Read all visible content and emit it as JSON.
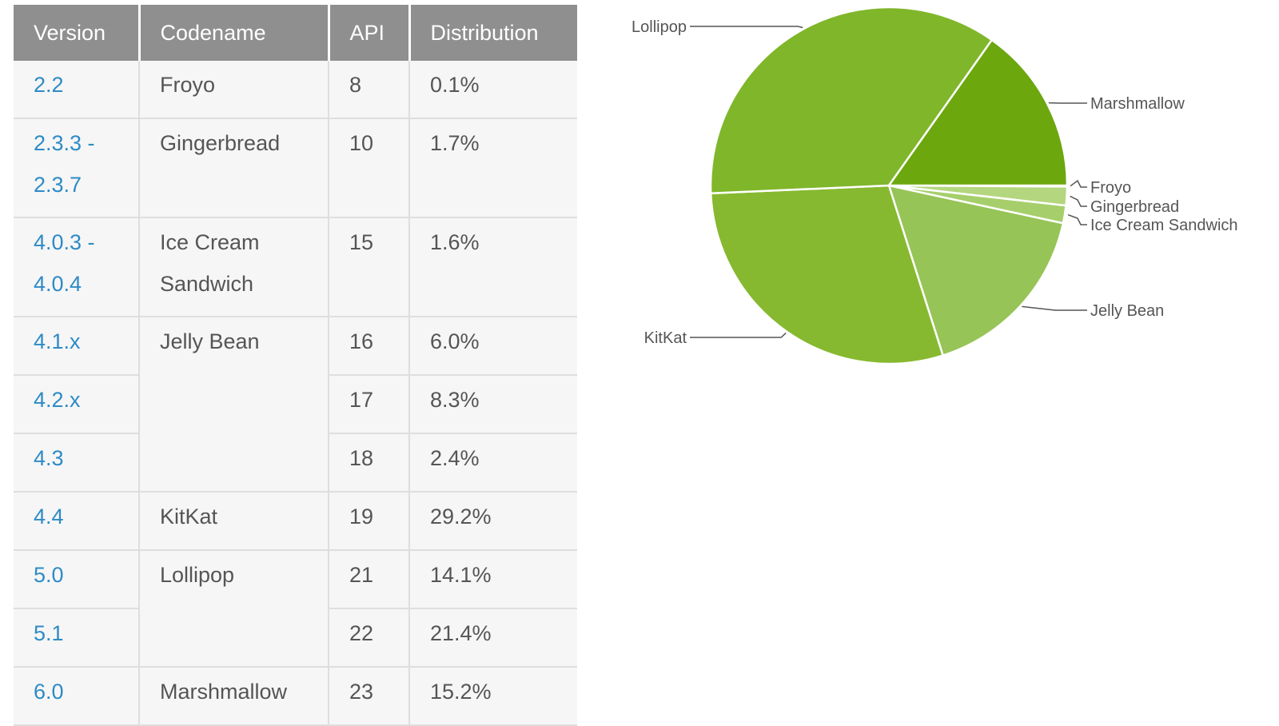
{
  "table": {
    "headers": [
      "Version",
      "Codename",
      "API",
      "Distribution"
    ],
    "rows": [
      {
        "version": "2.2",
        "codename": "Froyo",
        "api": "8",
        "distribution": "0.1%"
      },
      {
        "version": "2.3.3 -\n2.3.7",
        "codename": "Gingerbread",
        "api": "10",
        "distribution": "1.7%"
      },
      {
        "version": "4.0.3 -\n4.0.4",
        "codename": "Ice Cream\nSandwich",
        "api": "15",
        "distribution": "1.6%"
      },
      {
        "version": "4.1.x",
        "codename": "Jelly Bean",
        "api": "16",
        "distribution": "6.0%"
      },
      {
        "version": "4.2.x",
        "codename": "",
        "api": "17",
        "distribution": "8.3%"
      },
      {
        "version": "4.3",
        "codename": "",
        "api": "18",
        "distribution": "2.4%"
      },
      {
        "version": "4.4",
        "codename": "KitKat",
        "api": "19",
        "distribution": "29.2%"
      },
      {
        "version": "5.0",
        "codename": "Lollipop",
        "api": "21",
        "distribution": "14.1%"
      },
      {
        "version": "5.1",
        "codename": "",
        "api": "22",
        "distribution": "21.4%"
      },
      {
        "version": "6.0",
        "codename": "Marshmallow",
        "api": "23",
        "distribution": "15.2%"
      }
    ]
  },
  "chart_data": {
    "type": "pie",
    "start_angle_deg": 0,
    "direction": "clockwise",
    "slices": [
      {
        "label": "Froyo",
        "value": 0.1,
        "color": "#c5e1a0"
      },
      {
        "label": "Gingerbread",
        "value": 1.7,
        "color": "#b4d67f"
      },
      {
        "label": "Ice Cream Sandwich",
        "value": 1.6,
        "color": "#a6cf6b"
      },
      {
        "label": "Jelly Bean",
        "value": 16.7,
        "color": "#97c457"
      },
      {
        "label": "KitKat",
        "value": 29.2,
        "color": "#86b92f"
      },
      {
        "label": "Lollipop",
        "value": 35.5,
        "color": "#80b62a"
      },
      {
        "label": "Marshmallow",
        "value": 15.2,
        "color": "#6ca70e"
      }
    ]
  }
}
